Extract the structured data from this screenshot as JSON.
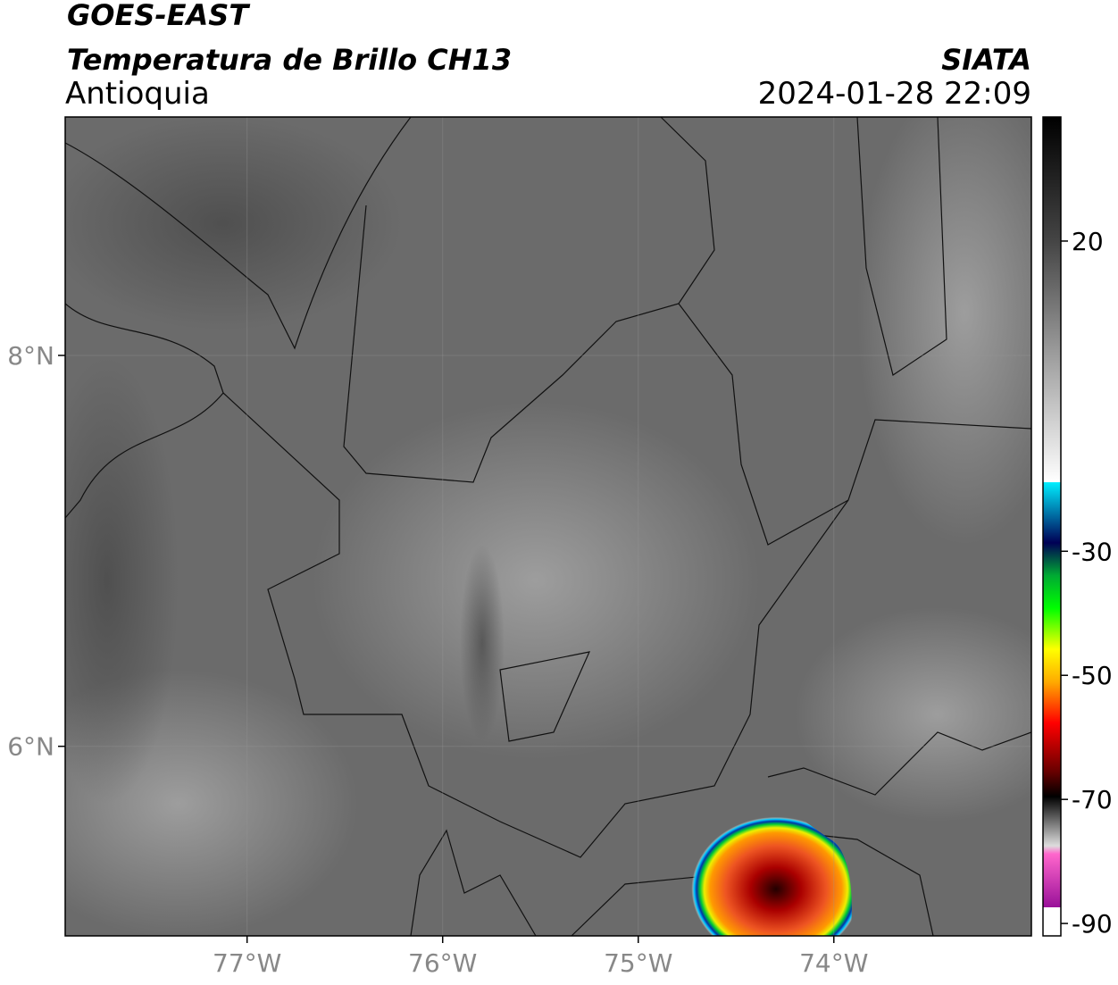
{
  "header": {
    "title": "GOES-EAST",
    "subtitle": "Temperatura de Brillo CH13",
    "region": "Antioquia",
    "source": "SIATA",
    "datetime": "2024-01-28 22:09"
  },
  "map": {
    "xlim": [
      -77.93,
      -72.99
    ],
    "ylim": [
      5.03,
      9.22
    ],
    "xticks": [
      {
        "value": -77,
        "label": "77°W"
      },
      {
        "value": -76,
        "label": "76°W"
      },
      {
        "value": -75,
        "label": "75°W"
      },
      {
        "value": -74,
        "label": "74°W"
      }
    ],
    "yticks": [
      {
        "value": 8,
        "label": "8°N"
      },
      {
        "value": 6,
        "label": "6°N"
      }
    ],
    "grid": true
  },
  "colorbar": {
    "lim": [
      -92,
      40
    ],
    "ticks": [
      20,
      -30,
      -50,
      -70,
      -90
    ]
  }
}
